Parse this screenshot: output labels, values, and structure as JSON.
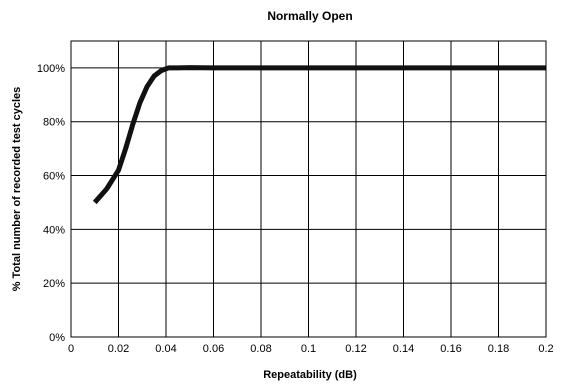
{
  "chart_data": {
    "type": "line",
    "title": "Normally Open",
    "xlabel": "Repeatability (dB)",
    "ylabel": "% Total number of recorded test cycles",
    "xlim": [
      0,
      0.2
    ],
    "ylim": [
      0,
      110
    ],
    "x_ticks": [
      0,
      0.02,
      0.04,
      0.06,
      0.08,
      0.1,
      0.12,
      0.14,
      0.16,
      0.18,
      0.2
    ],
    "x_tick_labels": [
      "0",
      "0.02",
      "0.04",
      "0.06",
      "0.08",
      "0.1",
      "0.12",
      "0.14",
      "0.16",
      "0.18",
      "0.2"
    ],
    "y_ticks": [
      0,
      20,
      40,
      60,
      80,
      100
    ],
    "y_tick_labels": [
      "0%",
      "20%",
      "40%",
      "60%",
      "80%",
      "100%"
    ],
    "grid": true,
    "legend": "none",
    "series": [
      {
        "color": "#111111",
        "x": [
          0.01,
          0.015,
          0.02,
          0.023,
          0.026,
          0.029,
          0.032,
          0.035,
          0.038,
          0.041,
          0.043,
          0.045,
          0.05,
          0.06,
          0.08,
          0.1,
          0.12,
          0.14,
          0.16,
          0.18,
          0.2
        ],
        "y": [
          50,
          55,
          62,
          70,
          79,
          87,
          93,
          97,
          99,
          100,
          100,
          100,
          100.1,
          100,
          100,
          100,
          100,
          100,
          100,
          100,
          100
        ]
      }
    ]
  }
}
